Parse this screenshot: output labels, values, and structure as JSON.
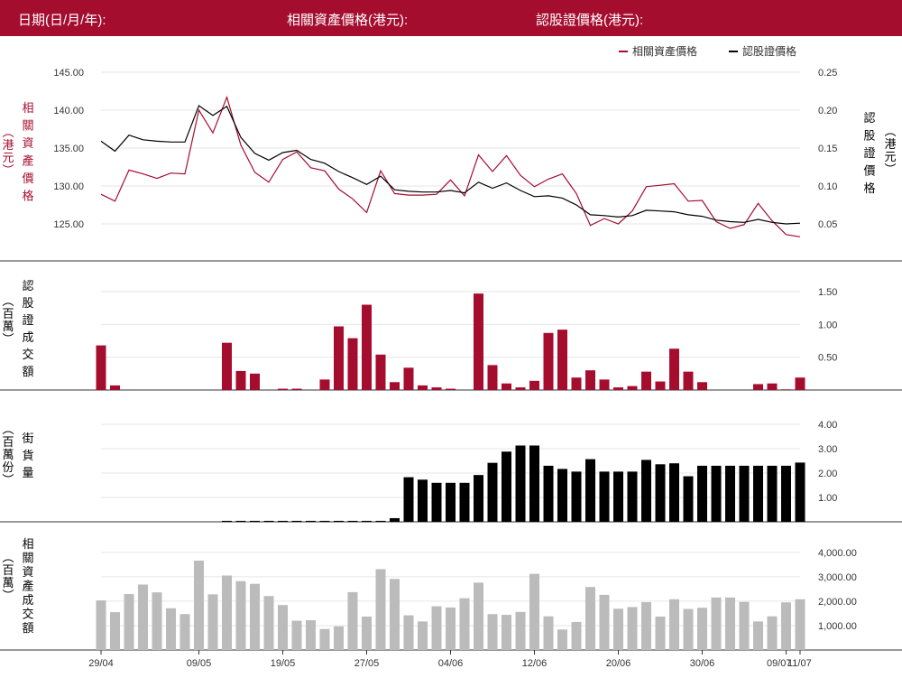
{
  "header": {
    "date_label": "日期(日/月/年):",
    "underlying_label": "相關資產價格(港元):",
    "warrant_label": "認股證價格(港元):"
  },
  "colors": {
    "brand": "#a50d2f",
    "underlying": "#a50d2f",
    "warrant": "#000000",
    "turnover": "#bbbbbb",
    "grid": "#e6e6e6"
  },
  "chart_data": [
    {
      "type": "line",
      "legend": [
        "相關資產價格",
        "認股證價格"
      ],
      "legend_position": "top-right",
      "left_axis_label": [
        "相",
        "關",
        "資",
        "產",
        "價",
        "格"
      ],
      "left_axis_unit": [
        "︵",
        "港",
        "元",
        "︶"
      ],
      "right_axis_label": [
        "認",
        "股",
        "證",
        "價",
        "格"
      ],
      "right_axis_unit": [
        "︵",
        "港",
        "元",
        "︶"
      ],
      "left_ylim": [
        121,
        145
      ],
      "left_ticks": [
        "125.00",
        "130.00",
        "135.00",
        "140.00",
        "145.00"
      ],
      "right_ylim": [
        0.0,
        0.25
      ],
      "right_ticks": [
        "0.05",
        "0.10",
        "0.15",
        "0.20",
        "0.25"
      ],
      "series": [
        {
          "name": "相關資產價格",
          "axis": "left",
          "values": [
            128.9,
            128.0,
            132.1,
            131.6,
            131.0,
            131.7,
            131.6,
            140.0,
            137.0,
            141.7,
            135.4,
            131.8,
            130.5,
            133.5,
            134.5,
            132.4,
            132.0,
            129.6,
            128.3,
            126.5,
            132.0,
            129.0,
            128.8,
            128.8,
            128.9,
            130.8,
            128.7,
            134.1,
            131.9,
            134.0,
            131.4,
            129.9,
            130.9,
            131.6,
            129.0,
            124.8,
            125.7,
            125.0,
            126.7,
            129.9,
            130.1,
            130.3,
            128.0,
            128.1,
            125.3,
            124.4,
            124.9,
            127.7,
            125.4,
            123.6,
            123.3
          ]
        },
        {
          "name": "認股證價格",
          "axis": "right",
          "values": [
            0.159,
            0.146,
            0.167,
            0.161,
            0.159,
            0.158,
            0.158,
            0.206,
            0.193,
            0.205,
            0.164,
            0.143,
            0.134,
            0.144,
            0.147,
            0.135,
            0.13,
            0.119,
            0.111,
            0.102,
            0.113,
            0.095,
            0.093,
            0.092,
            0.092,
            0.094,
            0.091,
            0.105,
            0.097,
            0.104,
            0.094,
            0.086,
            0.087,
            0.084,
            0.075,
            0.062,
            0.061,
            0.059,
            0.061,
            0.068,
            0.067,
            0.066,
            0.062,
            0.06,
            0.055,
            0.053,
            0.052,
            0.056,
            0.052,
            0.05,
            0.051
          ]
        }
      ]
    },
    {
      "type": "bar",
      "axis_label": [
        "認",
        "股",
        "證",
        "成",
        "交",
        "額"
      ],
      "axis_unit": [
        "︵",
        "百",
        "萬",
        "︶"
      ],
      "ylim": [
        0,
        1.75
      ],
      "ticks": [
        "0.50",
        "1.00",
        "1.50"
      ],
      "values": [
        0.68,
        0.07,
        0,
        0,
        0,
        0,
        0,
        0,
        0,
        0.72,
        0.29,
        0.25,
        0,
        0.02,
        0.02,
        0,
        0.16,
        0.97,
        0.79,
        1.3,
        0.54,
        0.12,
        0.34,
        0.07,
        0.04,
        0.02,
        0,
        1.47,
        0.38,
        0.1,
        0.04,
        0.14,
        0.87,
        0.92,
        0.19,
        0.3,
        0.16,
        0.04,
        0.06,
        0.28,
        0.13,
        0.63,
        0.28,
        0.12,
        0,
        0,
        0,
        0.09,
        0.1,
        0.01,
        0.19
      ]
    },
    {
      "type": "bar",
      "axis_label": [
        "街",
        "貨",
        "量"
      ],
      "axis_unit": [
        "︵",
        "百",
        "萬",
        "份",
        "︶"
      ],
      "ylim": [
        0,
        4.5
      ],
      "ticks": [
        "1.00",
        "2.00",
        "3.00",
        "4.00"
      ],
      "values": [
        0,
        0,
        0,
        0,
        0,
        0,
        0,
        0,
        0,
        0.04,
        0.04,
        0.04,
        0.04,
        0.04,
        0.04,
        0.04,
        0.04,
        0.04,
        0.04,
        0.04,
        0.04,
        0.15,
        1.83,
        1.73,
        1.6,
        1.6,
        1.6,
        1.92,
        2.42,
        2.88,
        3.13,
        3.13,
        2.3,
        2.17,
        2.06,
        2.57,
        2.06,
        2.06,
        2.06,
        2.54,
        2.36,
        2.4,
        1.87,
        2.3,
        2.3,
        2.3,
        2.3,
        2.3,
        2.3,
        2.3,
        2.43
      ]
    },
    {
      "type": "bar",
      "axis_label": [
        "相",
        "關",
        "資",
        "產",
        "成",
        "交",
        "額"
      ],
      "axis_unit": [
        "︵",
        "百",
        "萬",
        "︶"
      ],
      "ylim": [
        0,
        4500
      ],
      "ticks": [
        "1,000.00",
        "2,000.00",
        "3,000.00",
        "4,000.00"
      ],
      "values": [
        2030,
        1550,
        2290,
        2680,
        2360,
        1710,
        1470,
        3660,
        2280,
        3050,
        2820,
        2710,
        2210,
        1840,
        1200,
        1220,
        860,
        970,
        2370,
        1370,
        3310,
        2910,
        1420,
        1170,
        1790,
        1740,
        2120,
        2760,
        1470,
        1440,
        1560,
        3120,
        1380,
        840,
        1150,
        2580,
        2260,
        1690,
        1760,
        1960,
        1370,
        2080,
        1680,
        1730,
        2150,
        2150,
        1970,
        1170,
        1380,
        1950,
        2080
      ]
    }
  ],
  "x_axis": {
    "labels": [
      "29/04",
      "09/05",
      "19/05",
      "27/05",
      "04/06",
      "12/06",
      "20/06",
      "30/06",
      "09/07",
      "11/07"
    ],
    "indices": [
      0,
      7,
      13,
      19,
      25,
      31,
      37,
      43,
      49,
      50
    ]
  }
}
